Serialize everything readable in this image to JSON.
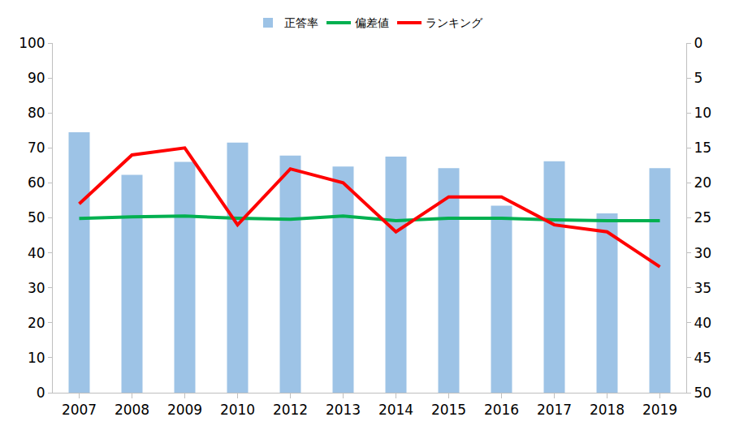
{
  "chart_data": {
    "type": "bar",
    "categories": [
      "2007",
      "2008",
      "2009",
      "2010",
      "2012",
      "2013",
      "2014",
      "2015",
      "2016",
      "2017",
      "2018",
      "2019"
    ],
    "series": [
      {
        "name": "正答率",
        "type": "bar",
        "color": "#9dc3e6",
        "values": [
          74.5,
          62.3,
          66,
          71.5,
          67.8,
          64.7,
          67.5,
          64.2,
          53.5,
          66.2,
          51.3,
          64.2
        ]
      },
      {
        "name": "偏差値",
        "type": "line",
        "color": "#00b050",
        "values": [
          49.8,
          50.3,
          50.5,
          49.9,
          49.6,
          50.5,
          49.2,
          49.9,
          49.9,
          49.4,
          49.2,
          49.2
        ]
      },
      {
        "name": "ランキング",
        "type": "line",
        "color": "#ff0000",
        "axis": "y2",
        "values": [
          23,
          16,
          15,
          26,
          18,
          20,
          27,
          22,
          22,
          26,
          27,
          32
        ]
      }
    ],
    "ylim": [
      0,
      100
    ],
    "yticks": [
      0,
      10,
      20,
      30,
      40,
      50,
      60,
      70,
      80,
      90,
      100
    ],
    "y2lim": [
      50,
      0
    ],
    "y2ticks": [
      0,
      5,
      10,
      15,
      20,
      25,
      30,
      35,
      40,
      45,
      50
    ],
    "grid": false,
    "legend": "top"
  }
}
